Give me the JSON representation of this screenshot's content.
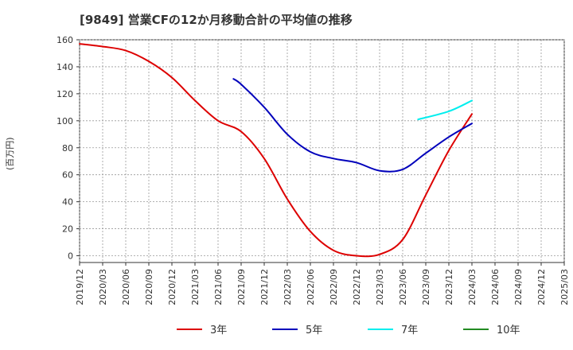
{
  "chart_data": {
    "type": "line",
    "title": "[9849]  営業CFの12か月移動合計の平均値の推移",
    "ylabel": "(百万円)",
    "xlabel": "",
    "ylim": [
      -5,
      160
    ],
    "grid": true,
    "legend_position": "bottom",
    "y_ticks": [
      "0",
      "20",
      "40",
      "60",
      "80",
      "100",
      "120",
      "140",
      "160"
    ],
    "x_ticks": [
      "2019/12",
      "2020/03",
      "2020/06",
      "2020/09",
      "2020/12",
      "2021/03",
      "2021/06",
      "2021/09",
      "2021/12",
      "2022/03",
      "2022/06",
      "2022/09",
      "2022/12",
      "2023/03",
      "2023/06",
      "2023/09",
      "2023/12",
      "2024/03",
      "2024/06",
      "2024/09",
      "2024/12",
      "2025/03"
    ],
    "series": [
      {
        "name": "3年",
        "color": "#dd0000",
        "points": [
          [
            "2019/12",
            157
          ],
          [
            "2020/03",
            155
          ],
          [
            "2020/06",
            152
          ],
          [
            "2020/09",
            144
          ],
          [
            "2020/12",
            132
          ],
          [
            "2021/03",
            115
          ],
          [
            "2021/06",
            100
          ],
          [
            "2021/09",
            92
          ],
          [
            "2021/12",
            72
          ],
          [
            "2022/03",
            42
          ],
          [
            "2022/06",
            18
          ],
          [
            "2022/09",
            4
          ],
          [
            "2022/12",
            0
          ],
          [
            "2023/03",
            1
          ],
          [
            "2023/06",
            12
          ],
          [
            "2023/09",
            45
          ],
          [
            "2023/12",
            78
          ],
          [
            "2024/03",
            105
          ]
        ]
      },
      {
        "name": "5年",
        "color": "#0000bb",
        "points": [
          [
            "2021/08",
            131
          ],
          [
            "2021/09",
            127
          ],
          [
            "2021/12",
            110
          ],
          [
            "2022/03",
            90
          ],
          [
            "2022/06",
            77
          ],
          [
            "2022/09",
            72
          ],
          [
            "2022/12",
            69
          ],
          [
            "2023/03",
            63
          ],
          [
            "2023/06",
            64
          ],
          [
            "2023/09",
            76
          ],
          [
            "2023/12",
            88
          ],
          [
            "2024/03",
            98
          ]
        ]
      },
      {
        "name": "7年",
        "color": "#00eeee",
        "points": [
          [
            "2023/08",
            101
          ],
          [
            "2023/12",
            107
          ],
          [
            "2024/03",
            115
          ]
        ]
      },
      {
        "name": "10年",
        "color": "#228b22",
        "points": []
      }
    ]
  }
}
